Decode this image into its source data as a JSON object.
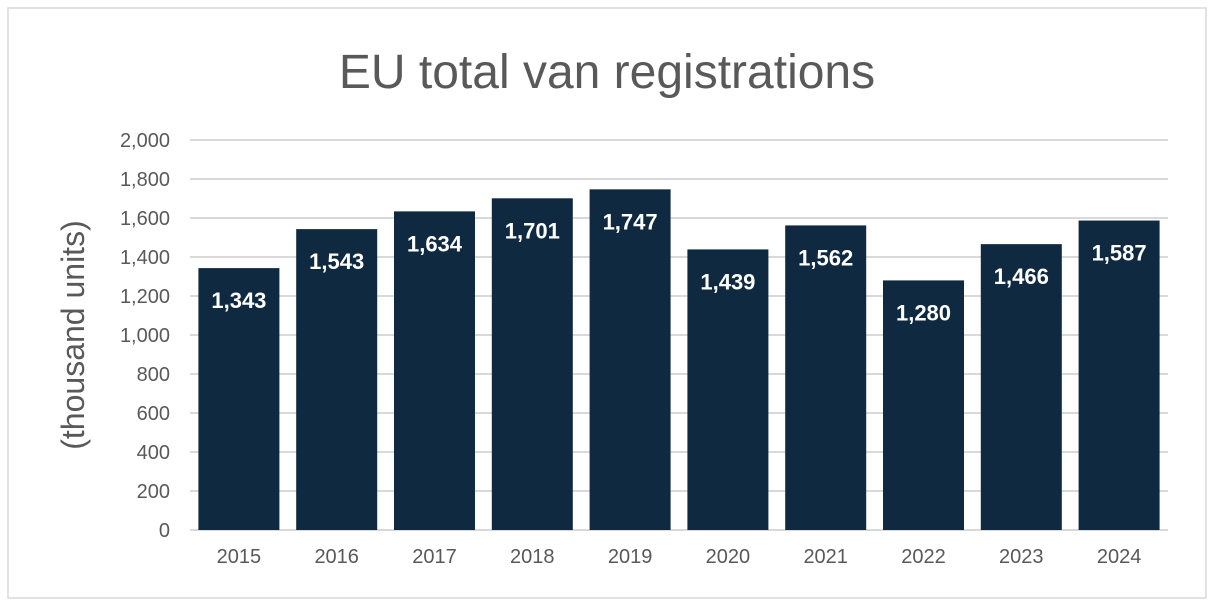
{
  "chart_data": {
    "type": "bar",
    "title": "EU total van registrations",
    "xlabel": "",
    "ylabel": "(thousand units)",
    "categories": [
      "2015",
      "2016",
      "2017",
      "2018",
      "2019",
      "2020",
      "2021",
      "2022",
      "2023",
      "2024"
    ],
    "values": [
      1343,
      1543,
      1634,
      1701,
      1747,
      1439,
      1562,
      1280,
      1466,
      1587
    ],
    "data_labels": [
      "1,343",
      "1,543",
      "1,634",
      "1,701",
      "1,747",
      "1,439",
      "1,562",
      "1,280",
      "1,466",
      "1,587"
    ],
    "ylim": [
      0,
      2000
    ],
    "yticks": [
      0,
      200,
      400,
      600,
      800,
      1000,
      1200,
      1400,
      1600,
      1800,
      2000
    ],
    "ytick_labels": [
      "0",
      "200",
      "400",
      "600",
      "800",
      "1,000",
      "1,200",
      "1,400",
      "1,600",
      "1,800",
      "2,000"
    ],
    "grid": true,
    "legend": "none",
    "colors": {
      "bar": "#0f2a40",
      "grid": "#d9d9d9",
      "text": "#595959"
    }
  }
}
